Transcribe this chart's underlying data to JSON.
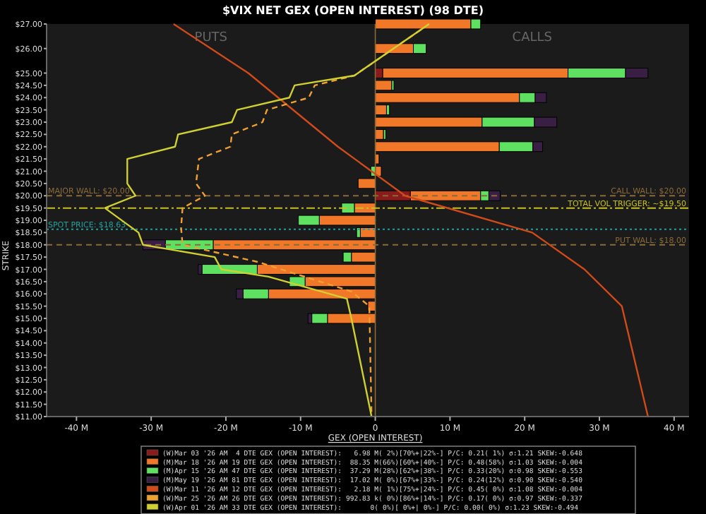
{
  "chart_data": {
    "type": "bar",
    "orientation": "horizontal",
    "stacked": true,
    "title": "$VIX NET GEX (OPEN INTEREST) (98 DTE)",
    "xlabel": "GEX (OPEN INTEREST)",
    "ylabel": "STRIKE",
    "legend": "bottom",
    "annotations": [
      "PUTS",
      "CALLS",
      {
        "text": "CALL WALL: $20.00",
        "x": 42,
        "y": 20
      }
    ],
    "x": [
      27,
      26,
      25,
      24.5,
      24,
      23.5,
      23,
      22.5,
      22,
      21.5,
      21,
      20.5,
      20,
      19.5,
      19,
      18.5,
      18,
      17.5,
      17,
      16.5,
      16,
      15.5,
      15
    ],
    "xlim": [
      -44,
      42
    ],
    "xticks": [
      {
        "value": -40,
        "label": "-40 M"
      },
      {
        "value": -30,
        "label": "-30 M"
      },
      {
        "value": -20,
        "label": "-20 M"
      },
      {
        "value": -10,
        "label": "-10 M"
      },
      0,
      {
        "value": 10,
        "label": "10 M"
      },
      {
        "value": 20,
        "label": "20 M"
      },
      {
        "value": 30,
        "label": "30 M"
      },
      {
        "value": 40,
        "label": "40 M"
      }
    ],
    "ylim": [
      11,
      27
    ],
    "yticks": [
      {
        "value": 11,
        "label": "$11.00"
      },
      {
        "value": 11.5,
        "label": "$11.50"
      },
      {
        "value": 12,
        "label": "$12.00"
      },
      {
        "value": 12.5,
        "label": "$12.50"
      },
      {
        "value": 13,
        "label": "$13.00"
      },
      {
        "value": 13.5,
        "label": "$13.50"
      },
      {
        "value": 14,
        "label": "$14.00"
      },
      {
        "value": 14.5,
        "label": "$14.50"
      },
      {
        "value": 15,
        "label": "$15.00"
      },
      {
        "value": 15.5,
        "label": "$15.50"
      },
      {
        "value": 16,
        "label": "$16.00"
      },
      {
        "value": 16.5,
        "label": "$16.50"
      },
      {
        "value": 17,
        "label": "$17.00"
      },
      {
        "value": 17.5,
        "label": "$17.50"
      },
      {
        "value": 18,
        "label": "$18.00"
      },
      {
        "value": 18.5,
        "label": "$18.50"
      },
      {
        "value": 19,
        "label": "$19.00"
      },
      {
        "value": 19.5,
        "label": "$19.50"
      },
      {
        "value": 20,
        "label": "$20.00"
      },
      {
        "value": 20.5,
        "label": "$20.50"
      },
      {
        "value": 21,
        "label": "$21.00"
      },
      {
        "value": 21.5,
        "label": "$21.50"
      },
      {
        "value": 22,
        "label": "$22.00"
      },
      {
        "value": 22.5,
        "label": "$22.50"
      },
      {
        "value": 23,
        "label": "$23.00"
      },
      {
        "value": 23.5,
        "label": "$23.50"
      },
      {
        "value": 24,
        "label": "$24.00"
      },
      {
        "value": 24.5,
        "label": "$24.50"
      },
      {
        "value": 25,
        "label": "$25.00"
      },
      {
        "value": 26,
        "label": "$26.00"
      },
      {
        "value": 27,
        "label": "$27.00"
      }
    ],
    "ref_lines": [
      {
        "axis": "y",
        "value": 20,
        "label": "MAJOR WALL: $20.00",
        "color": "#8a6a3a",
        "line_style": "dashed"
      },
      {
        "axis": "x",
        "value": 0,
        "color": "#8a6a3a",
        "line_style": "solid"
      },
      {
        "axis": "y",
        "value": 19.5,
        "label": "TOTAL VOL TRIGGER: ~$19.50",
        "color": "#c8c020",
        "line_style": "dashdot"
      },
      {
        "axis": "y",
        "value": 18.63,
        "label": "SPOT PRICE: $18.63",
        "color": "#20a0a0",
        "line_style": "dotted"
      },
      {
        "axis": "y",
        "value": 18,
        "label": "PUT WALL: $18.00",
        "color": "#8a6a3a",
        "line_style": "dashed"
      }
    ],
    "series": [
      {
        "name": "(W)Mar 03 '26 AM  4 DTE GEX (OPEN INTEREST):   6.98 M( 2%)[70%+|22%-] P/C: 0.21( 1%) σ:1.21 SKEW:-0.648",
        "color": "#8b1a1a",
        "values": [
          null,
          null,
          1.0,
          null,
          null,
          null,
          null,
          null,
          null,
          null,
          null,
          null,
          4.7,
          null,
          null,
          null,
          null,
          null,
          null,
          null,
          null,
          null,
          null
        ]
      },
      {
        "name": "(M)Mar 18 '26 AM 19 DTE GEX (OPEN INTEREST):  88.35 M(66%)[60%+|40%-] P/C: 0.48(58%) σ:1.03 SKEW:-0.004",
        "color": "#f07828",
        "values": [
          12.8,
          5.1,
          24.8,
          2.2,
          19.3,
          1.5,
          14.3,
          1.1,
          16.6,
          0.5,
          0.8,
          -2.3,
          9.4,
          -2.8,
          -7.5,
          -2,
          -21.7,
          -3.2,
          -15.8,
          -9.4,
          -14.3,
          -1,
          -6.4
        ]
      },
      {
        "name": "(M)Apr 15 '26 AM 47 DTE GEX (OPEN INTEREST):  37.29 M(28%)[62%+|38%-] P/C: 0.33(20%) σ:0.98 SKEW:-0.553",
        "color": "#5ee060",
        "values": [
          1.3,
          1.7,
          7.7,
          0.3,
          2.1,
          0.4,
          7.0,
          0.3,
          4.5,
          null,
          -0.6,
          null,
          1.1,
          -1.7,
          -2.8,
          -0.5,
          -6.4,
          -1.1,
          -7.4,
          -2.1,
          -3.4,
          null,
          -2.1
        ]
      },
      {
        "name": "(M)May 19 '26 AM 81 DTE GEX (OPEN INTEREST):  17.02 M( 0%)[67%+|33%-] P/C: 0.24(12%) σ:0.90 SKEW:-0.540",
        "color": "#3a1f44",
        "values": [
          null,
          null,
          3.0,
          null,
          1.5,
          null,
          3.0,
          null,
          1.3,
          null,
          null,
          null,
          1.5,
          null,
          null,
          null,
          -3.0,
          null,
          -0.5,
          null,
          -0.9,
          null,
          -0.5
        ]
      },
      {
        "name": "(W)Mar 11 '26 AM 12 DTE GEX (OPEN INTEREST):   2.18 M( 1%)[75%+|24%-] P/C: 0.45( 0%) σ:1.08 SKEW:-0.004",
        "color": "#d04a1a",
        "type": "line",
        "x": [
          27,
          25,
          22,
          20,
          18.5,
          17,
          15.5,
          11
        ],
        "values": [
          -27,
          -17,
          -5,
          4,
          21,
          28,
          33,
          36.5
        ]
      },
      {
        "name": "(W)Mar 25 '26 AM 26 DTE GEX (OPEN INTEREST): 992.83 k( 0%)[86%+|14%-] P/C: 0.17( 0%) σ:0.97 SKEW:-0.337",
        "color": "#f0a030",
        "type": "line",
        "line_style": "dashed",
        "x": [
          27,
          24.9,
          24.5,
          24,
          23.5,
          23,
          22.5,
          22,
          21.5,
          20.5,
          20,
          19.5,
          18.7,
          18,
          17.3,
          16.1,
          15.5,
          11
        ],
        "values": [
          7.2,
          -2.8,
          -8.1,
          -8.9,
          -14.5,
          -15.1,
          -19.2,
          -19.4,
          -23.6,
          -24,
          -22.8,
          -25.8,
          -26,
          -25.8,
          -15.7,
          -3.2,
          -0.8,
          -0.5
        ]
      },
      {
        "name": "(W)Apr 01 '26 AM 33 DTE GEX (OPEN INTEREST):       0( 0%)[ 0%+| 0%-] P/C: 0.00( 0%) σ:1.23 SKEW:-0.494",
        "color": "#d0d030",
        "type": "line",
        "x": [
          27,
          24.9,
          24.5,
          24,
          23.5,
          23,
          22.5,
          22,
          21.5,
          20.5,
          20,
          19.5,
          18.5,
          18,
          17.5,
          17,
          16.7,
          15.8,
          15,
          11
        ],
        "values": [
          7.2,
          -2.8,
          -10.8,
          -11.5,
          -18.5,
          -19.2,
          -26.4,
          -26.8,
          -33.2,
          -33.2,
          -32.1,
          -36.2,
          -31.7,
          -31.1,
          -21.5,
          -20.6,
          -14.3,
          -3.8,
          -3.2,
          -0.5
        ]
      }
    ]
  }
}
